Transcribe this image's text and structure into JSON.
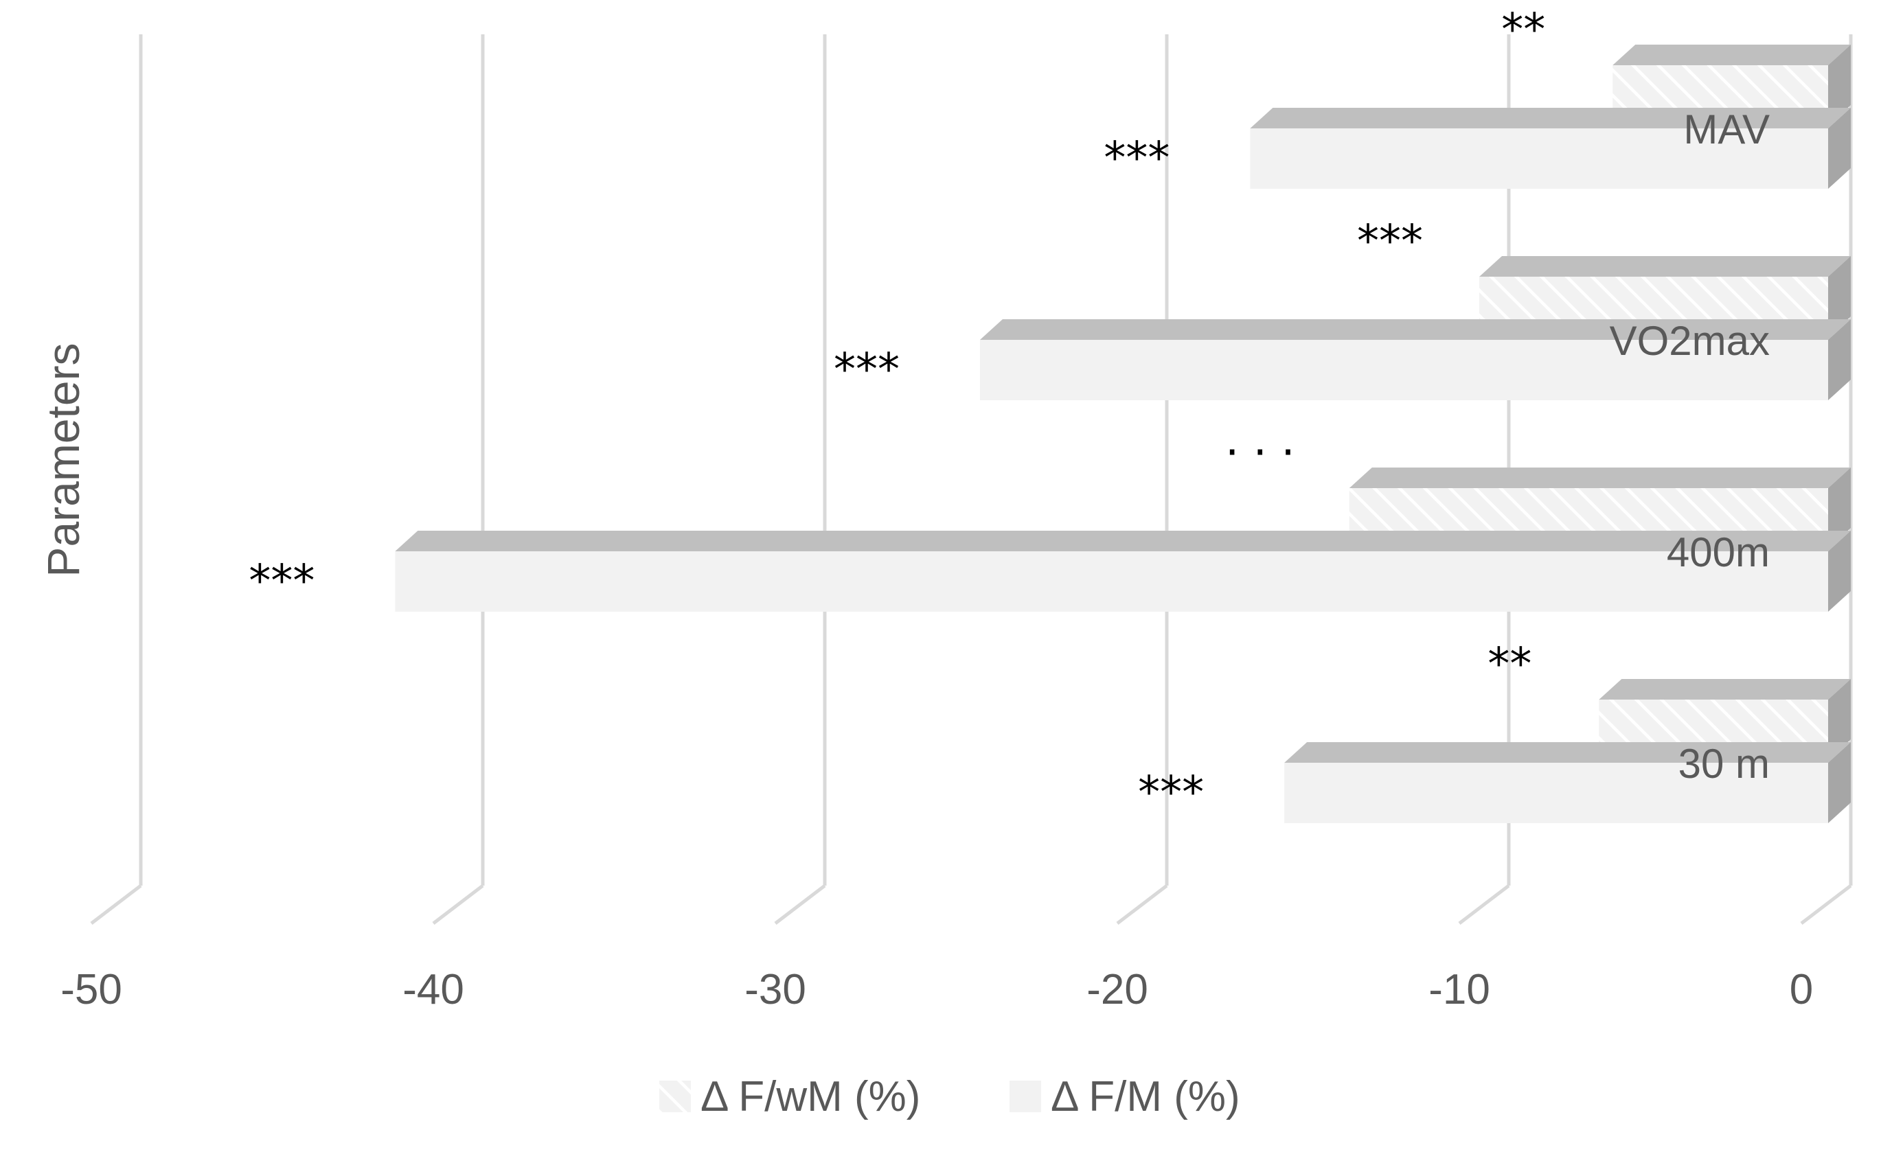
{
  "chart_data": {
    "type": "bar",
    "orientation": "horizontal",
    "three_d": true,
    "categories": [
      "30 m",
      "400m",
      "VO2max",
      "MAV"
    ],
    "series": [
      {
        "name": "Δ F/wM  (%)",
        "values": [
          -6.7,
          -14.0,
          -10.2,
          -6.3
        ],
        "significance": [
          "**",
          "· · ·",
          "***",
          "**"
        ],
        "pattern": "hatched",
        "color": "#f2f2f2"
      },
      {
        "name": "Δ F/M (%)",
        "values": [
          -15.9,
          -41.9,
          -24.8,
          -16.9
        ],
        "significance": [
          "***",
          "***",
          "***",
          "***"
        ],
        "pattern": "solid",
        "color": "#f2f2f2"
      }
    ],
    "xlim": [
      -50,
      0
    ],
    "xticks": [
      -50,
      -40,
      -30,
      -20,
      -10,
      0
    ],
    "ylabel": "Parameters",
    "xlabel": "",
    "grid": true,
    "legend_position": "bottom",
    "colors": {
      "bar_face": "#f2f2f2",
      "bar_top": "#bfbfbf",
      "bar_side": "#a6a6a6",
      "grid": "#d9d9d9",
      "text": "#595959"
    }
  }
}
